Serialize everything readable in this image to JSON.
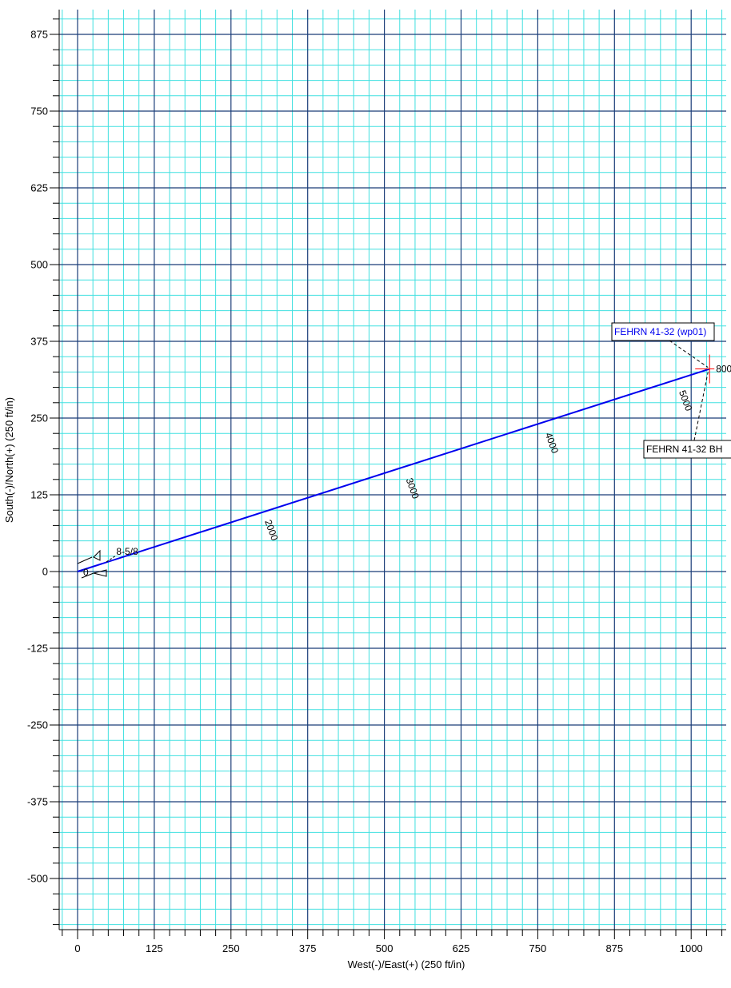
{
  "chart_data": {
    "type": "line",
    "xlabel": "West(-)/East(+) (250 ft/in)",
    "ylabel": "South(-)/North(+) (250 ft/in)",
    "xlim": [
      -60,
      1060
    ],
    "ylim": [
      -610,
      915
    ],
    "x_ticks": [
      0,
      125,
      250,
      375,
      500,
      625,
      750,
      875,
      1000
    ],
    "y_ticks": [
      875,
      750,
      625,
      500,
      375,
      250,
      125,
      0,
      -125,
      -250,
      -375,
      -500
    ],
    "major_grid_step": 125,
    "minor_grid_step": 25,
    "grid": true,
    "colors": {
      "major_grid": "#1a3c78",
      "minor_grid": "#40e0e0",
      "well_path": "#0000ee",
      "target_label": "#0000ee",
      "target_marker": "#ff0000"
    },
    "series": [
      {
        "values": [
          {
            "x": 0,
            "y": 0
          },
          {
            "x": 1030,
            "y": 330
          }
        ]
      }
    ],
    "md_labels": [
      {
        "text": "0",
        "x": 15,
        "y": 0
      },
      {
        "text": "2000",
        "x": 305,
        "y": 82
      },
      {
        "text": "3000",
        "x": 535,
        "y": 150
      },
      {
        "text": "4000",
        "x": 762,
        "y": 224
      },
      {
        "text": "5000",
        "x": 980,
        "y": 293
      }
    ],
    "end_label": {
      "text": "800",
      "x": 1040,
      "y": 330
    },
    "casing_label": {
      "text": "8-5/8",
      "x": 67,
      "y": 35
    },
    "target_label": {
      "text": "FEHRN 41-32 (wp01)",
      "x": 870,
      "y": 390
    },
    "bh_label": {
      "text": "FEHRN 41-32 BH",
      "x": 930,
      "y": 195
    }
  }
}
